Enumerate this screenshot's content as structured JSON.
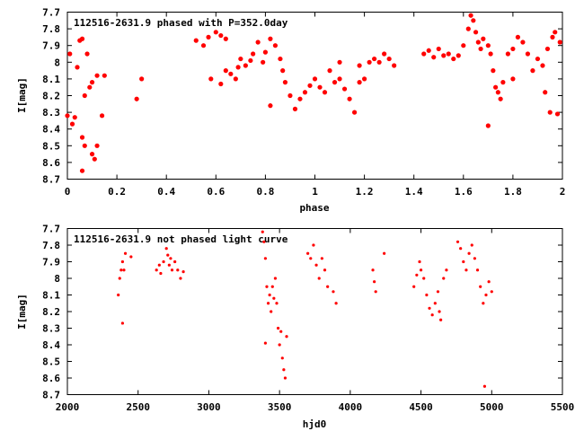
{
  "chart_data": [
    {
      "type": "scatter",
      "title": "112516-2631.9 phased with P=352.0day",
      "xlabel": "phase",
      "ylabel": "I[mag]",
      "xlim": [
        0,
        2
      ],
      "ylim": [
        8.7,
        7.7
      ],
      "y_inverted": true,
      "grid": false,
      "x_ticks": [
        "0",
        "0.2",
        "0.4",
        "0.6",
        "0.8",
        "1",
        "1.2",
        "1.4",
        "1.6",
        "1.8",
        "2"
      ],
      "y_ticks": [
        "7.7",
        "7.8",
        "7.9",
        "8",
        "8.1",
        "8.2",
        "8.3",
        "8.4",
        "8.5",
        "8.6",
        "8.7"
      ],
      "marker_color": "#ff0000",
      "points": [
        [
          0.0,
          8.32
        ],
        [
          0.01,
          7.95
        ],
        [
          0.02,
          8.37
        ],
        [
          0.03,
          8.33
        ],
        [
          0.04,
          8.03
        ],
        [
          0.05,
          7.87
        ],
        [
          0.06,
          7.86
        ],
        [
          0.06,
          8.45
        ],
        [
          0.07,
          8.2
        ],
        [
          0.07,
          8.5
        ],
        [
          0.08,
          7.95
        ],
        [
          0.09,
          8.15
        ],
        [
          0.1,
          8.12
        ],
        [
          0.1,
          8.55
        ],
        [
          0.11,
          8.58
        ],
        [
          0.12,
          8.08
        ],
        [
          0.12,
          8.5
        ],
        [
          0.14,
          8.32
        ],
        [
          0.15,
          8.08
        ],
        [
          0.28,
          8.22
        ],
        [
          0.3,
          8.1
        ],
        [
          0.06,
          8.65
        ],
        [
          0.52,
          7.87
        ],
        [
          0.55,
          7.9
        ],
        [
          0.57,
          7.85
        ],
        [
          0.58,
          8.1
        ],
        [
          0.6,
          7.82
        ],
        [
          0.62,
          7.84
        ],
        [
          0.62,
          8.13
        ],
        [
          0.64,
          7.86
        ],
        [
          0.64,
          8.05
        ],
        [
          0.66,
          8.07
        ],
        [
          0.68,
          8.1
        ],
        [
          0.69,
          8.03
        ],
        [
          0.7,
          7.98
        ],
        [
          0.72,
          8.02
        ],
        [
          0.74,
          7.99
        ],
        [
          0.75,
          7.95
        ],
        [
          0.77,
          7.88
        ],
        [
          0.79,
          8.0
        ],
        [
          0.8,
          7.94
        ],
        [
          0.82,
          7.86
        ],
        [
          0.84,
          7.9
        ],
        [
          0.86,
          7.98
        ],
        [
          0.87,
          8.05
        ],
        [
          0.88,
          8.12
        ],
        [
          0.9,
          8.2
        ],
        [
          0.92,
          8.28
        ],
        [
          0.94,
          8.22
        ],
        [
          0.96,
          8.18
        ],
        [
          0.98,
          8.14
        ],
        [
          1.0,
          8.1
        ],
        [
          1.02,
          8.15
        ],
        [
          1.04,
          8.18
        ],
        [
          1.06,
          8.05
        ],
        [
          1.08,
          8.12
        ],
        [
          1.1,
          8.1
        ],
        [
          1.12,
          8.16
        ],
        [
          1.14,
          8.22
        ],
        [
          1.16,
          8.3
        ],
        [
          1.18,
          8.12
        ],
        [
          1.2,
          8.1
        ],
        [
          1.22,
          8.0
        ],
        [
          1.24,
          7.98
        ],
        [
          1.26,
          8.0
        ],
        [
          1.28,
          7.95
        ],
        [
          1.3,
          7.98
        ],
        [
          1.32,
          8.02
        ],
        [
          0.82,
          8.26
        ],
        [
          1.1,
          8.0
        ],
        [
          1.18,
          8.02
        ],
        [
          1.44,
          7.95
        ],
        [
          1.46,
          7.93
        ],
        [
          1.48,
          7.97
        ],
        [
          1.5,
          7.92
        ],
        [
          1.52,
          7.96
        ],
        [
          1.54,
          7.95
        ],
        [
          1.56,
          7.98
        ],
        [
          1.58,
          7.96
        ],
        [
          1.6,
          7.9
        ],
        [
          1.62,
          7.8
        ],
        [
          1.63,
          7.72
        ],
        [
          1.64,
          7.75
        ],
        [
          1.65,
          7.82
        ],
        [
          1.66,
          7.88
        ],
        [
          1.67,
          7.92
        ],
        [
          1.68,
          7.86
        ],
        [
          1.7,
          7.9
        ],
        [
          1.71,
          7.95
        ],
        [
          1.72,
          8.05
        ],
        [
          1.73,
          8.15
        ],
        [
          1.74,
          8.18
        ],
        [
          1.75,
          8.22
        ],
        [
          1.76,
          8.12
        ],
        [
          1.78,
          7.95
        ],
        [
          1.8,
          7.92
        ],
        [
          1.82,
          7.85
        ],
        [
          1.84,
          7.88
        ],
        [
          1.86,
          7.95
        ],
        [
          1.88,
          8.05
        ],
        [
          1.9,
          7.98
        ],
        [
          1.92,
          8.02
        ],
        [
          1.93,
          8.18
        ],
        [
          1.94,
          7.92
        ],
        [
          1.95,
          8.3
        ],
        [
          1.96,
          7.85
        ],
        [
          1.97,
          7.82
        ],
        [
          1.98,
          8.31
        ],
        [
          1.99,
          7.88
        ],
        [
          1.7,
          8.38
        ],
        [
          1.8,
          8.1
        ]
      ]
    },
    {
      "type": "scatter",
      "title": "112516-2631.9 not phased light curve",
      "xlabel": "hjd0",
      "ylabel": "I[mag]",
      "xlim": [
        2000,
        5500
      ],
      "ylim": [
        8.7,
        7.7
      ],
      "y_inverted": true,
      "grid": false,
      "x_ticks": [
        "2000",
        "2500",
        "3000",
        "3500",
        "4000",
        "4500",
        "5000",
        "5500"
      ],
      "y_ticks": [
        "7.7",
        "7.8",
        "7.9",
        "8",
        "8.1",
        "8.2",
        "8.3",
        "8.4",
        "8.5",
        "8.6",
        "8.7"
      ],
      "marker_color": "#ff0000",
      "points": [
        [
          2360,
          8.1
        ],
        [
          2370,
          8.0
        ],
        [
          2380,
          7.95
        ],
        [
          2390,
          7.9
        ],
        [
          2400,
          7.95
        ],
        [
          2410,
          7.85
        ],
        [
          2390,
          8.27
        ],
        [
          2450,
          7.87
        ],
        [
          2630,
          7.95
        ],
        [
          2650,
          7.92
        ],
        [
          2660,
          7.97
        ],
        [
          2680,
          7.9
        ],
        [
          2700,
          7.82
        ],
        [
          2710,
          7.86
        ],
        [
          2720,
          7.92
        ],
        [
          2730,
          7.88
        ],
        [
          2740,
          7.95
        ],
        [
          2760,
          7.9
        ],
        [
          2780,
          7.95
        ],
        [
          2800,
          8.0
        ],
        [
          2820,
          7.96
        ],
        [
          3380,
          7.72
        ],
        [
          3390,
          7.78
        ],
        [
          3400,
          7.88
        ],
        [
          3410,
          8.05
        ],
        [
          3420,
          8.15
        ],
        [
          3430,
          8.1
        ],
        [
          3440,
          8.2
        ],
        [
          3450,
          8.05
        ],
        [
          3460,
          8.12
        ],
        [
          3470,
          8.0
        ],
        [
          3480,
          8.15
        ],
        [
          3490,
          8.3
        ],
        [
          3500,
          8.4
        ],
        [
          3510,
          8.32
        ],
        [
          3520,
          8.48
        ],
        [
          3530,
          8.55
        ],
        [
          3540,
          8.6
        ],
        [
          3550,
          8.35
        ],
        [
          3400,
          8.39
        ],
        [
          3700,
          7.85
        ],
        [
          3720,
          7.88
        ],
        [
          3740,
          7.8
        ],
        [
          3760,
          7.92
        ],
        [
          3780,
          8.0
        ],
        [
          3800,
          7.88
        ],
        [
          3820,
          7.95
        ],
        [
          3840,
          8.05
        ],
        [
          3880,
          8.08
        ],
        [
          3900,
          8.15
        ],
        [
          4160,
          7.95
        ],
        [
          4170,
          8.02
        ],
        [
          4180,
          8.08
        ],
        [
          4240,
          7.85
        ],
        [
          4450,
          8.05
        ],
        [
          4470,
          7.98
        ],
        [
          4490,
          7.9
        ],
        [
          4500,
          7.95
        ],
        [
          4520,
          8.0
        ],
        [
          4540,
          8.1
        ],
        [
          4560,
          8.18
        ],
        [
          4580,
          8.22
        ],
        [
          4600,
          8.15
        ],
        [
          4620,
          8.08
        ],
        [
          4630,
          8.2
        ],
        [
          4640,
          8.25
        ],
        [
          4660,
          8.0
        ],
        [
          4680,
          7.95
        ],
        [
          4760,
          7.78
        ],
        [
          4780,
          7.82
        ],
        [
          4800,
          7.9
        ],
        [
          4820,
          7.95
        ],
        [
          4840,
          7.85
        ],
        [
          4860,
          7.8
        ],
        [
          4880,
          7.88
        ],
        [
          4900,
          7.95
        ],
        [
          4920,
          8.05
        ],
        [
          4940,
          8.15
        ],
        [
          4960,
          8.1
        ],
        [
          4980,
          8.02
        ],
        [
          5000,
          8.08
        ],
        [
          4950,
          8.65
        ]
      ]
    }
  ]
}
